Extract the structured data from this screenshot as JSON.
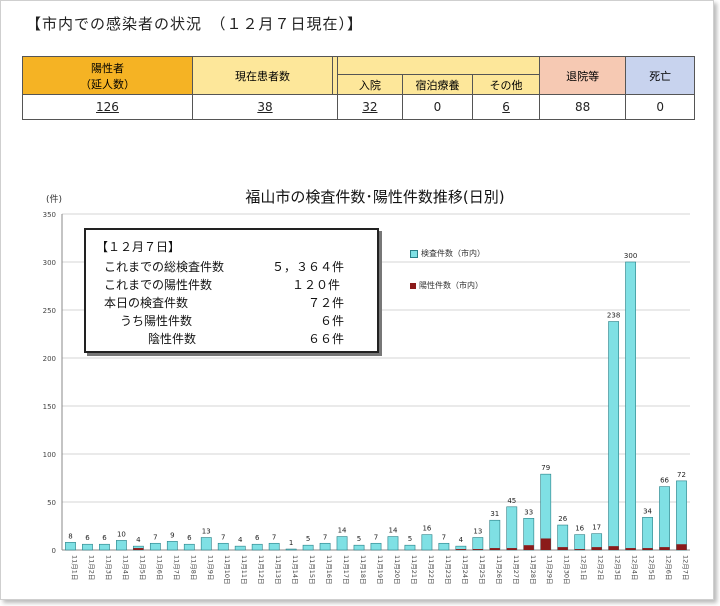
{
  "heading": "【市内での感染者の状況　（１２月７日現在）】",
  "status_table": {
    "head_positive_1": "陽性者",
    "head_positive_2": "（延人数）",
    "head_current": "現在患者数",
    "head_hospital": "入院",
    "head_hotel": "宿泊療養",
    "head_other": "その他",
    "head_discharged": "退院等",
    "head_death": "死亡",
    "positive": "126",
    "current": "38",
    "hospital": "32",
    "hotel": "0",
    "other": "6",
    "discharged": "88",
    "death": "0",
    "colors": {
      "orange": "#f5b324",
      "yellow": "#fde79a",
      "pink": "#f6c9b3",
      "blue": "#c8d3ee"
    }
  },
  "notes": {
    "date": "【１２月７日】",
    "total_tests_label": "これまでの総検査件数",
    "total_tests_value": "５，３６４件",
    "total_positive_label": "これまでの陽性件数",
    "total_positive_value": "１２０件",
    "today_tests_label": "本日の検査件数",
    "today_tests_value": "７２件",
    "today_positive_label": "うち陽性件数",
    "today_positive_value": "６件",
    "today_negative_label": "陰性件数",
    "today_negative_value": "６６件"
  },
  "chart_data": {
    "type": "bar",
    "title": "福山市の検査件数･陽性件数推移(日別)",
    "ylabel": "(件)",
    "ylim": [
      0,
      350
    ],
    "yticks": [
      0,
      50,
      100,
      150,
      200,
      250,
      300,
      350
    ],
    "categories": [
      "11月1日",
      "11月2日",
      "11月3日",
      "11月4日",
      "11月5日",
      "11月6日",
      "11月7日",
      "11月8日",
      "11月9日",
      "11月10日",
      "11月11日",
      "11月12日",
      "11月13日",
      "11月14日",
      "11月15日",
      "11月16日",
      "11月17日",
      "11月18日",
      "11月19日",
      "11月20日",
      "11月21日",
      "11月22日",
      "11月23日",
      "11月24日",
      "11月25日",
      "11月26日",
      "11月27日",
      "11月28日",
      "11月29日",
      "11月30日",
      "12月1日",
      "12月2日",
      "12月3日",
      "12月4日",
      "12月5日",
      "12月6日",
      "12月7日"
    ],
    "series": [
      {
        "name": "検査件数（市内）",
        "color": "#7fe0e4",
        "values": [
          8,
          6,
          6,
          10,
          4,
          7,
          9,
          6,
          13,
          7,
          4,
          6,
          7,
          1,
          5,
          7,
          14,
          5,
          7,
          14,
          5,
          16,
          7,
          4,
          13,
          31,
          45,
          33,
          79,
          26,
          16,
          17,
          238,
          300,
          34,
          66,
          72
        ]
      },
      {
        "name": "陽性件数（市内）",
        "color": "#8b1a1a",
        "values": [
          0,
          0,
          0,
          0,
          2,
          0,
          0,
          0,
          0,
          0,
          0,
          0,
          0,
          0,
          0,
          0,
          0,
          0,
          0,
          0,
          0,
          0,
          0,
          1,
          1,
          2,
          2,
          5,
          12,
          3,
          1,
          3,
          4,
          2,
          2,
          3,
          6
        ]
      }
    ],
    "grid": true,
    "legend": "top-right"
  }
}
